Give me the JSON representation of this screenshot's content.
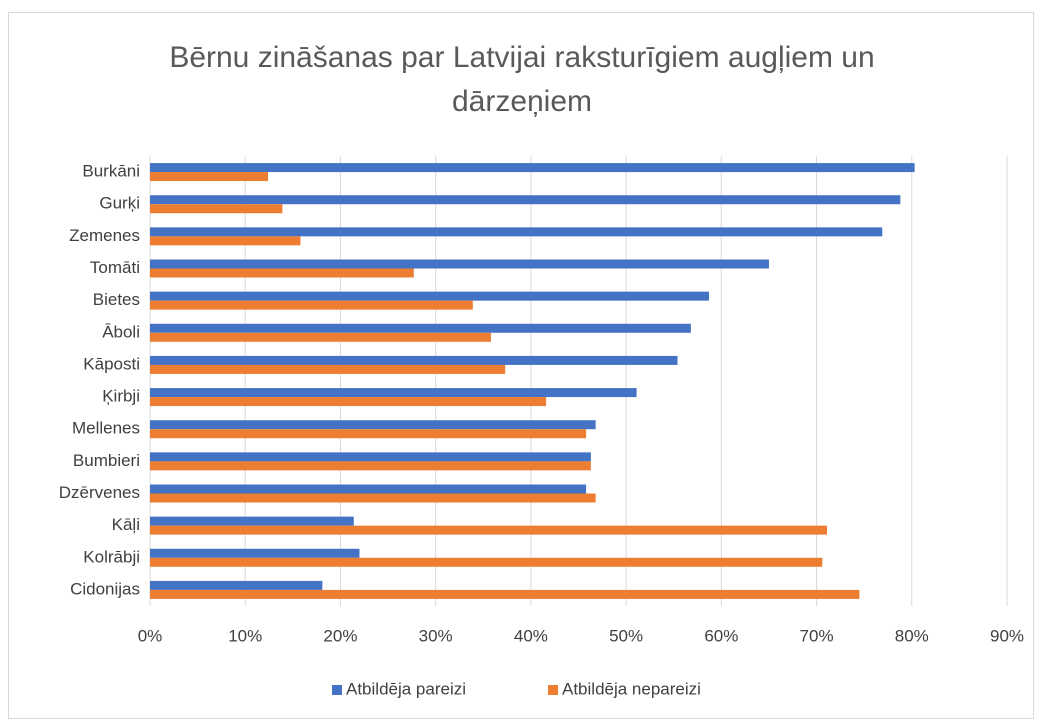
{
  "chart_data": {
    "type": "barh",
    "title": "Bērnu zināšanas par Latvijai raksturīgiem augļiem un dārzeņiem",
    "categories": [
      "Burkāni",
      "Gurķi",
      "Zemenes",
      "Tomāti",
      "Bietes",
      "Āboli",
      "Kāposti",
      "Ķirbji",
      "Mellenes",
      "Bumbieri",
      "Dzērvenes",
      "Kāļi",
      "Kolrābji",
      "Cidonijas"
    ],
    "series": [
      {
        "name": "Atbildēja pareizi",
        "color": "#4472c4",
        "values": [
          80.3,
          78.8,
          76.9,
          65.0,
          58.7,
          56.8,
          55.4,
          51.1,
          46.8,
          46.3,
          45.8,
          21.4,
          22.0,
          18.1
        ]
      },
      {
        "name": "Atbildēja nepareizi",
        "color": "#ed7d31",
        "values": [
          12.4,
          13.9,
          15.8,
          27.7,
          33.9,
          35.8,
          37.3,
          41.6,
          45.8,
          46.3,
          46.8,
          71.1,
          70.6,
          74.5
        ]
      }
    ],
    "xlim": [
      0,
      90
    ],
    "xticks": [
      {
        "value": 0,
        "label": "0%"
      },
      {
        "value": 10,
        "label": "10%"
      },
      {
        "value": 20,
        "label": "20%"
      },
      {
        "value": 30,
        "label": "30%"
      },
      {
        "value": 40,
        "label": "40%"
      },
      {
        "value": 50,
        "label": "50%"
      },
      {
        "value": 60,
        "label": "60%"
      },
      {
        "value": 70,
        "label": "70%"
      },
      {
        "value": 80,
        "label": "80%"
      },
      {
        "value": 90,
        "label": "90%"
      }
    ],
    "grid": true,
    "legend": "bottom"
  }
}
